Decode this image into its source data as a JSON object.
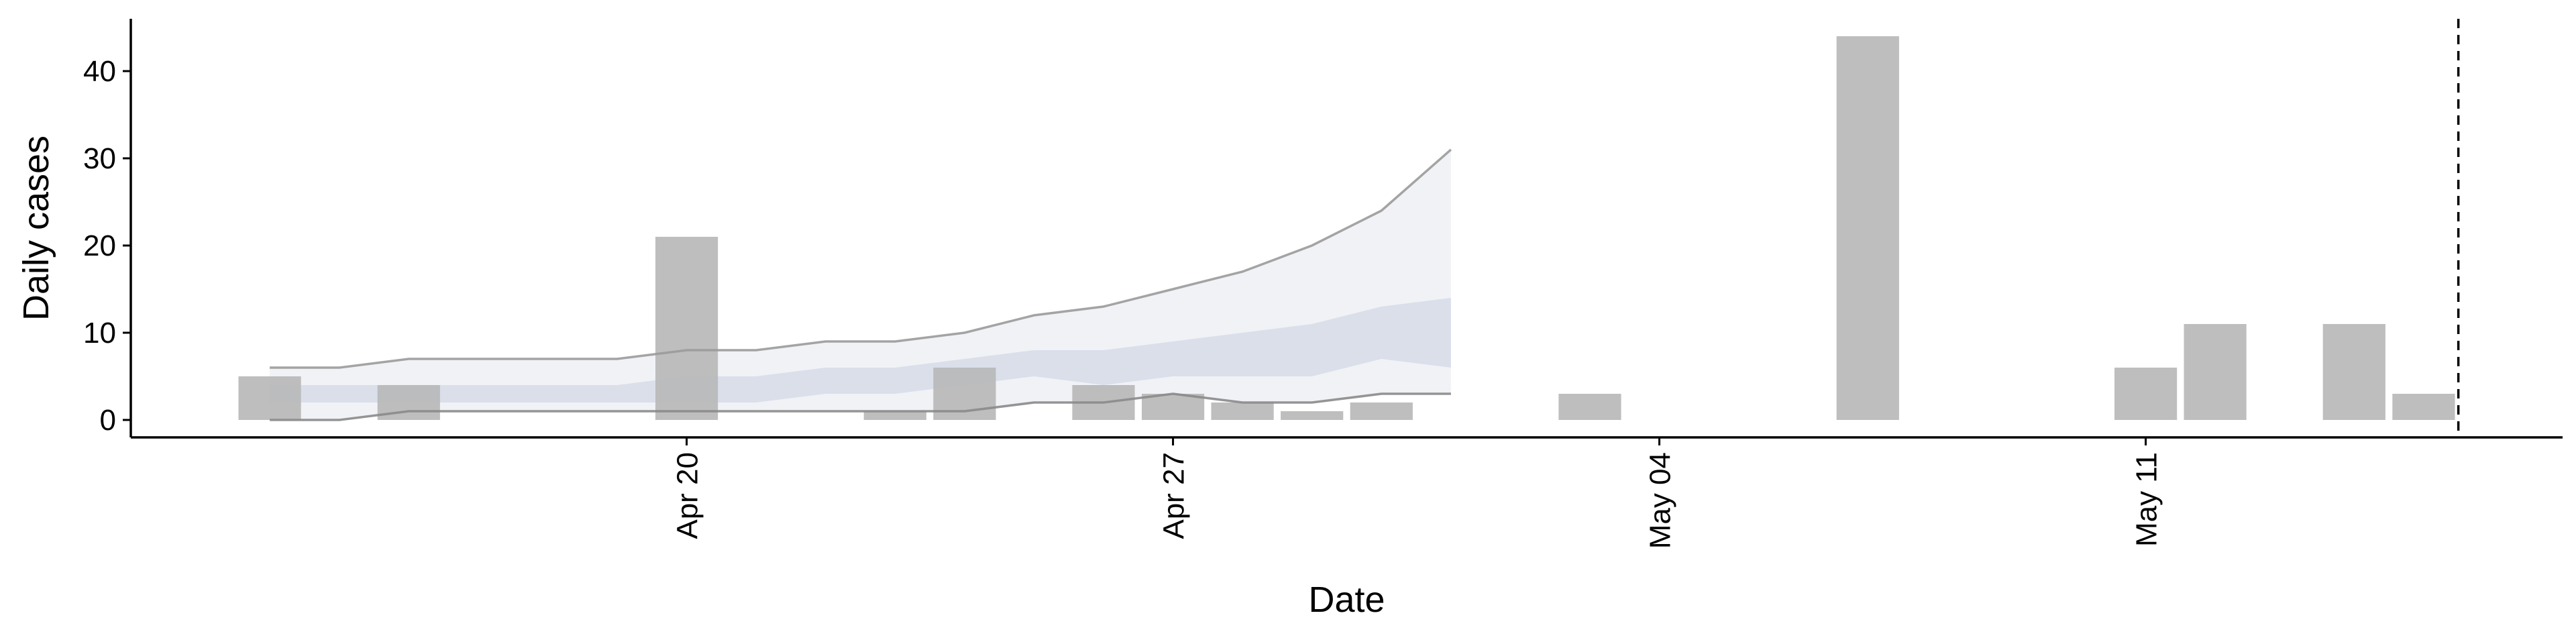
{
  "chart_data": {
    "type": "bar",
    "xlabel": "Date",
    "ylabel": "Daily cases",
    "x_range": [
      "2020-04-12",
      "2020-05-17"
    ],
    "ylim": [
      -2,
      46
    ],
    "x_ticks": [
      {
        "date": "2020-04-20",
        "label": "Apr 20"
      },
      {
        "date": "2020-04-27",
        "label": "Apr 27"
      },
      {
        "date": "2020-05-04",
        "label": "May 04"
      },
      {
        "date": "2020-05-11",
        "label": "May 11"
      }
    ],
    "y_ticks": [
      0,
      10,
      20,
      30,
      40
    ],
    "grid": false,
    "reference_line": {
      "date": "2020-05-15",
      "style": "dashed"
    },
    "series": [
      {
        "kind": "bar",
        "color": "#b9b9b9",
        "points": [
          {
            "date": "2020-04-14",
            "value": 5
          },
          {
            "date": "2020-04-16",
            "value": 4
          },
          {
            "date": "2020-04-20",
            "value": 21
          },
          {
            "date": "2020-04-23",
            "value": 1
          },
          {
            "date": "2020-04-24",
            "value": 6
          },
          {
            "date": "2020-04-26",
            "value": 4
          },
          {
            "date": "2020-04-27",
            "value": 3
          },
          {
            "date": "2020-04-28",
            "value": 2
          },
          {
            "date": "2020-04-29",
            "value": 1
          },
          {
            "date": "2020-04-30",
            "value": 2
          },
          {
            "date": "2020-05-03",
            "value": 3
          },
          {
            "date": "2020-05-07",
            "value": 44
          },
          {
            "date": "2020-05-11",
            "value": 6
          },
          {
            "date": "2020-05-12",
            "value": 11
          },
          {
            "date": "2020-05-14",
            "value": 11
          },
          {
            "date": "2020-05-15",
            "value": 3
          }
        ]
      },
      {
        "kind": "interval",
        "color": "#c8cfe0",
        "x": [
          "2020-04-14",
          "2020-04-15",
          "2020-04-16",
          "2020-04-17",
          "2020-04-18",
          "2020-04-19",
          "2020-04-20",
          "2020-04-21",
          "2020-04-22",
          "2020-04-23",
          "2020-04-24",
          "2020-04-25",
          "2020-04-26",
          "2020-04-27",
          "2020-04-28",
          "2020-04-29",
          "2020-04-30",
          "2020-05-01"
        ],
        "outer_lower": [
          0,
          0,
          1,
          1,
          1,
          1,
          1,
          1,
          1,
          1,
          1,
          2,
          2,
          3,
          2,
          2,
          3,
          3
        ],
        "outer_upper": [
          6,
          6,
          7,
          7,
          7,
          7,
          8,
          8,
          9,
          9,
          10,
          12,
          13,
          15,
          17,
          20,
          24,
          31
        ],
        "inner_lower": [
          2,
          2,
          2,
          2,
          2,
          2,
          2,
          2,
          3,
          3,
          4,
          5,
          4,
          5,
          5,
          5,
          7,
          6
        ],
        "inner_upper": [
          4,
          4,
          4,
          4,
          4,
          4,
          5,
          5,
          6,
          6,
          7,
          8,
          8,
          9,
          10,
          11,
          13,
          14
        ]
      }
    ]
  }
}
